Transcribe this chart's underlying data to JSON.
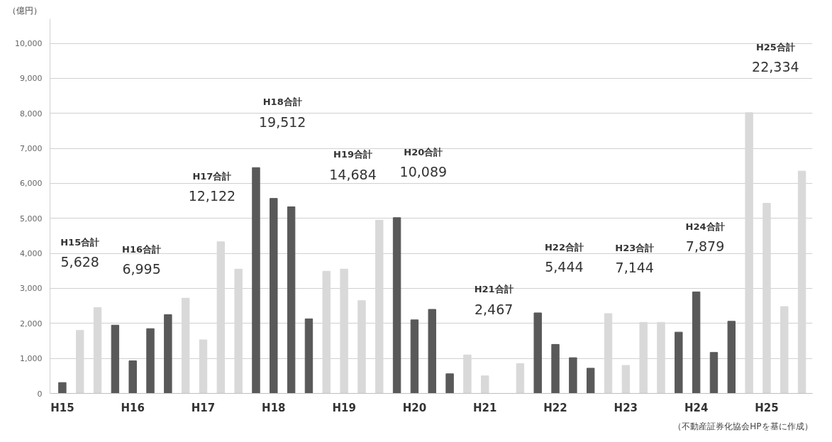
{
  "chart_data": {
    "type": "bar",
    "ylabel": "（億円）",
    "categories": [
      "H15",
      null,
      null,
      null,
      "H16",
      null,
      null,
      null,
      "H17",
      null,
      null,
      null,
      "H18",
      null,
      null,
      null,
      "H19",
      null,
      null,
      null,
      "H20",
      null,
      null,
      null,
      "H21",
      null,
      null,
      null,
      "H22",
      null,
      null,
      null,
      "H23",
      null,
      null,
      null,
      "H24",
      null,
      null,
      null,
      "H25",
      null,
      null
    ],
    "values": [
      310,
      1800,
      2450,
      1950,
      930,
      1850,
      2250,
      2720,
      1530,
      4330,
      3550,
      6450,
      5570,
      5330,
      2130,
      3490,
      3550,
      2650,
      4950,
      5020,
      2100,
      2400,
      560,
      1100,
      500,
      0,
      850,
      2300,
      1400,
      1020,
      720,
      2280,
      800,
      2030,
      2030,
      1750,
      2900,
      1170,
      2060,
      8020,
      5430,
      2480,
      6350
    ],
    "colors": [
      "#595959",
      "#d9d9d9",
      "#d9d9d9",
      "#595959",
      "#595959",
      "#595959",
      "#595959",
      "#d9d9d9",
      "#d9d9d9",
      "#d9d9d9",
      "#d9d9d9",
      "#595959",
      "#595959",
      "#595959",
      "#595959",
      "#d9d9d9",
      "#d9d9d9",
      "#d9d9d9",
      "#d9d9d9",
      "#595959",
      "#595959",
      "#595959",
      "#595959",
      "#d9d9d9",
      "#d9d9d9",
      "#d9d9d9",
      "#d9d9d9",
      "#595959",
      "#595959",
      "#595959",
      "#595959",
      "#d9d9d9",
      "#d9d9d9",
      "#d9d9d9",
      "#d9d9d9",
      "#595959",
      "#595959",
      "#595959",
      "#595959",
      "#d9d9d9",
      "#d9d9d9",
      "#d9d9d9",
      "#d9d9d9"
    ],
    "ylim": [
      0,
      10700
    ],
    "yticks": [
      0,
      {
        "value": 1000,
        "label": "1,000"
      },
      {
        "value": 2000,
        "label": "2,000"
      },
      {
        "value": 3000,
        "label": "3,000"
      },
      {
        "value": 4000,
        "label": "4,000"
      },
      {
        "value": 5000,
        "label": "5,000"
      },
      {
        "value": 6000,
        "label": "6,000"
      },
      {
        "value": 7000,
        "label": "7,000"
      },
      {
        "value": 8000,
        "label": "8,000"
      },
      {
        "value": 9000,
        "label": "9,000"
      },
      {
        "value": 10000,
        "label": "10,000"
      }
    ],
    "grid": "y",
    "annotations": [
      "H15合計",
      "5,628",
      "H16合計",
      "6,995",
      "H17合計",
      "12,122",
      "H18合計",
      "19,512",
      "H19合計",
      "14,684",
      "H20合計",
      "10,089",
      "H21合計",
      "2,467",
      "H22合計",
      "5,444",
      "H23合計",
      "7,144",
      "H24合計",
      "7,879",
      "H25合計",
      "22,334",
      "（不動産証券化協会HPを基に作成）"
    ]
  }
}
